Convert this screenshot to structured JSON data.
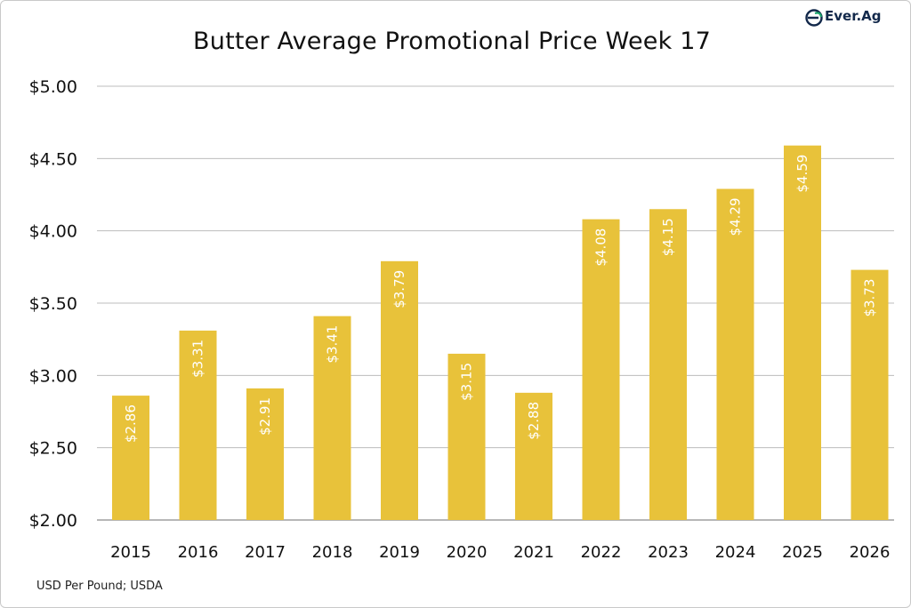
{
  "brand": {
    "name_part1": "Ever",
    "name_dot": ".",
    "name_part2": "Ag",
    "logo_icon": "everag-logo-icon",
    "logo_color": "#13294b",
    "logo_accent": "#1aa36a"
  },
  "footer": {
    "note": "USD Per Pound; USDA"
  },
  "colors": {
    "bar": "#e8c23a",
    "grid": "#bdbdbd",
    "axis": "#8c8c8c"
  },
  "chart_data": {
    "type": "bar",
    "title": "Butter Average Promotional Price Week 17",
    "xlabel": "",
    "ylabel": "",
    "categories": [
      "2015",
      "2016",
      "2017",
      "2018",
      "2019",
      "2020",
      "2021",
      "2022",
      "2023",
      "2024",
      "2025",
      "2026"
    ],
    "values": [
      2.86,
      3.31,
      2.91,
      3.41,
      3.79,
      3.15,
      2.88,
      4.08,
      4.15,
      4.29,
      4.59,
      3.73
    ],
    "data_labels": [
      "$2.86",
      "$3.31",
      "$2.91",
      "$3.41",
      "$3.79",
      "$3.15",
      "$2.88",
      "$4.08",
      "$4.15",
      "$4.29",
      "$4.59",
      "$3.73"
    ],
    "ylim": [
      2.0,
      5.0
    ],
    "y_ticks": [
      2.0,
      2.5,
      3.0,
      3.5,
      4.0,
      4.5,
      5.0
    ],
    "y_tick_labels": [
      "$2.00",
      "$2.50",
      "$3.00",
      "$3.50",
      "$4.00",
      "$4.50",
      "$5.00"
    ],
    "grid": true,
    "data_label_orientation": "vertical, inside bar"
  }
}
